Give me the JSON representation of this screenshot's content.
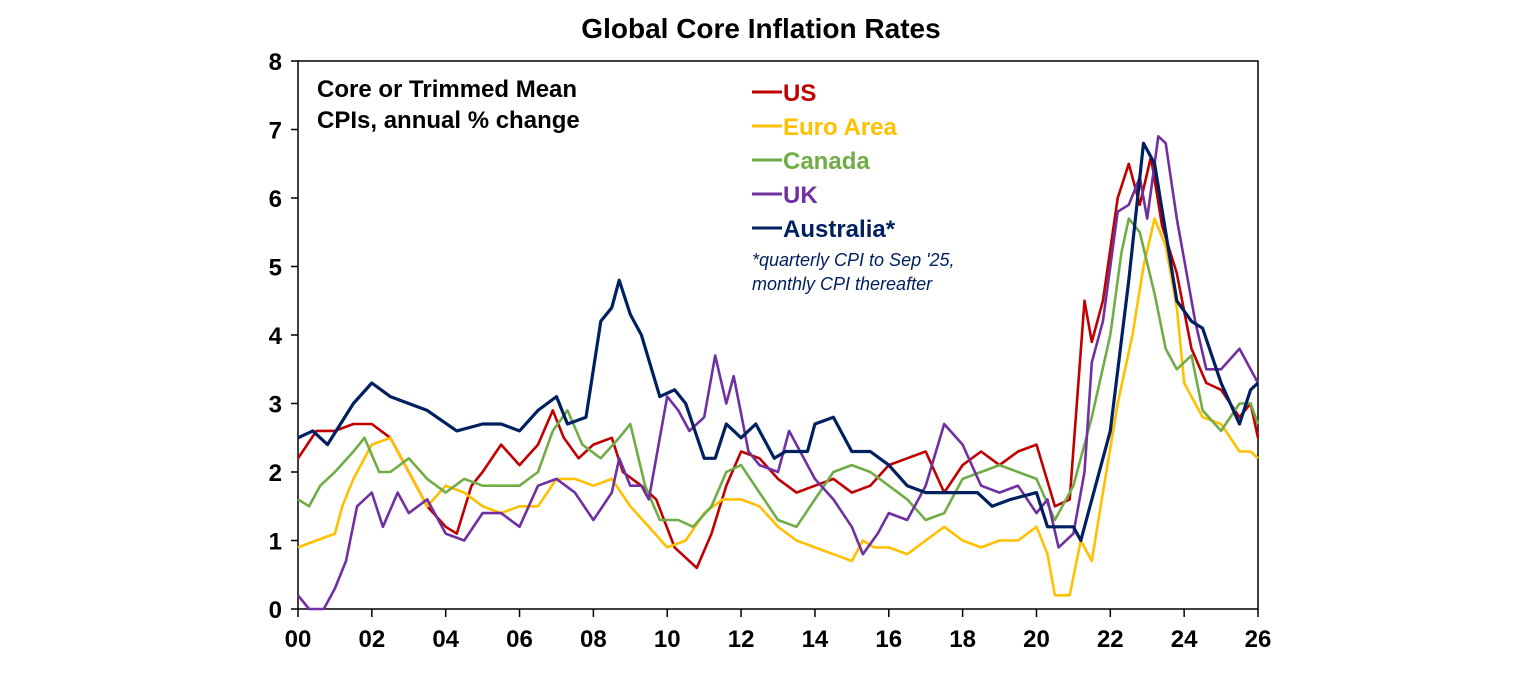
{
  "chart_data": {
    "type": "line",
    "title": "Global Core Inflation Rates",
    "annotation": [
      "Core or Trimmed Mean",
      "CPIs, annual % change"
    ],
    "footnote": [
      "*quarterly CPI to Sep '25,",
      "monthly CPI thereafter"
    ],
    "xlabel": "",
    "ylabel": "",
    "xlim": [
      2000,
      2026
    ],
    "ylim": [
      0,
      8
    ],
    "x_ticks": [
      0,
      2,
      4,
      6,
      8,
      10,
      12,
      14,
      16,
      18,
      20,
      22,
      24,
      26
    ],
    "x_tick_labels": [
      "00",
      "02",
      "04",
      "06",
      "08",
      "10",
      "12",
      "14",
      "16",
      "18",
      "20",
      "22",
      "24",
      "26"
    ],
    "y_ticks": [
      0,
      1,
      2,
      3,
      4,
      5,
      6,
      7,
      8
    ],
    "y_tick_labels": [
      "0",
      "1",
      "2",
      "3",
      "4",
      "5",
      "6",
      "7",
      "8"
    ],
    "grid": false,
    "legend_placement": "top-center",
    "series": [
      {
        "name": "US",
        "color": "#C00000",
        "points": [
          [
            0,
            2.2
          ],
          [
            0.5,
            2.6
          ],
          [
            1,
            2.6
          ],
          [
            1.5,
            2.7
          ],
          [
            2,
            2.7
          ],
          [
            2.5,
            2.5
          ],
          [
            3,
            2.0
          ],
          [
            3.5,
            1.5
          ],
          [
            4,
            1.2
          ],
          [
            4.3,
            1.1
          ],
          [
            4.7,
            1.8
          ],
          [
            5,
            2.0
          ],
          [
            5.5,
            2.4
          ],
          [
            6,
            2.1
          ],
          [
            6.5,
            2.4
          ],
          [
            6.9,
            2.9
          ],
          [
            7.2,
            2.5
          ],
          [
            7.6,
            2.2
          ],
          [
            8,
            2.4
          ],
          [
            8.5,
            2.5
          ],
          [
            8.8,
            2.0
          ],
          [
            9.3,
            1.8
          ],
          [
            9.7,
            1.6
          ],
          [
            10.2,
            0.9
          ],
          [
            10.8,
            0.6
          ],
          [
            11.2,
            1.1
          ],
          [
            11.6,
            1.8
          ],
          [
            12,
            2.3
          ],
          [
            12.5,
            2.2
          ],
          [
            13,
            1.9
          ],
          [
            13.5,
            1.7
          ],
          [
            14,
            1.8
          ],
          [
            14.5,
            1.9
          ],
          [
            15,
            1.7
          ],
          [
            15.5,
            1.8
          ],
          [
            16,
            2.1
          ],
          [
            16.5,
            2.2
          ],
          [
            17,
            2.3
          ],
          [
            17.5,
            1.7
          ],
          [
            18,
            2.1
          ],
          [
            18.5,
            2.3
          ],
          [
            19,
            2.1
          ],
          [
            19.5,
            2.3
          ],
          [
            20,
            2.4
          ],
          [
            20.5,
            1.5
          ],
          [
            20.9,
            1.6
          ],
          [
            21.3,
            4.5
          ],
          [
            21.5,
            3.9
          ],
          [
            21.8,
            4.5
          ],
          [
            22.2,
            6.0
          ],
          [
            22.5,
            6.5
          ],
          [
            22.8,
            5.9
          ],
          [
            23.1,
            6.6
          ],
          [
            23.4,
            5.6
          ],
          [
            23.8,
            4.9
          ],
          [
            24.2,
            3.8
          ],
          [
            24.6,
            3.3
          ],
          [
            25,
            3.2
          ],
          [
            25.5,
            2.8
          ],
          [
            25.8,
            3.0
          ],
          [
            26,
            2.5
          ]
        ]
      },
      {
        "name": "Euro Area",
        "color": "#FFC000",
        "points": [
          [
            0,
            0.9
          ],
          [
            0.5,
            1.0
          ],
          [
            1,
            1.1
          ],
          [
            1.2,
            1.5
          ],
          [
            1.5,
            1.9
          ],
          [
            2,
            2.4
          ],
          [
            2.5,
            2.5
          ],
          [
            3,
            2.0
          ],
          [
            3.5,
            1.5
          ],
          [
            4,
            1.8
          ],
          [
            4.5,
            1.7
          ],
          [
            5,
            1.5
          ],
          [
            5.5,
            1.4
          ],
          [
            6,
            1.5
          ],
          [
            6.5,
            1.5
          ],
          [
            7,
            1.9
          ],
          [
            7.5,
            1.9
          ],
          [
            8,
            1.8
          ],
          [
            8.5,
            1.9
          ],
          [
            9,
            1.5
          ],
          [
            9.5,
            1.2
          ],
          [
            10,
            0.9
          ],
          [
            10.5,
            1.0
          ],
          [
            11,
            1.4
          ],
          [
            11.5,
            1.6
          ],
          [
            12,
            1.6
          ],
          [
            12.5,
            1.5
          ],
          [
            13,
            1.2
          ],
          [
            13.5,
            1.0
          ],
          [
            14,
            0.9
          ],
          [
            14.5,
            0.8
          ],
          [
            15,
            0.7
          ],
          [
            15.3,
            1.0
          ],
          [
            15.6,
            0.9
          ],
          [
            16,
            0.9
          ],
          [
            16.5,
            0.8
          ],
          [
            17,
            1.0
          ],
          [
            17.5,
            1.2
          ],
          [
            18,
            1.0
          ],
          [
            18.5,
            0.9
          ],
          [
            19,
            1.0
          ],
          [
            19.5,
            1.0
          ],
          [
            20,
            1.2
          ],
          [
            20.3,
            0.8
          ],
          [
            20.5,
            0.2
          ],
          [
            20.9,
            0.2
          ],
          [
            21.2,
            1.0
          ],
          [
            21.5,
            0.7
          ],
          [
            21.8,
            1.7
          ],
          [
            22.2,
            3.0
          ],
          [
            22.6,
            4.0
          ],
          [
            22.9,
            5.0
          ],
          [
            23.2,
            5.7
          ],
          [
            23.5,
            5.3
          ],
          [
            23.8,
            4.4
          ],
          [
            24,
            3.3
          ],
          [
            24.5,
            2.8
          ],
          [
            25,
            2.7
          ],
          [
            25.5,
            2.3
          ],
          [
            25.8,
            2.3
          ],
          [
            26,
            2.2
          ]
        ]
      },
      {
        "name": "Canada",
        "color": "#70AD47",
        "points": [
          [
            0,
            1.6
          ],
          [
            0.3,
            1.5
          ],
          [
            0.6,
            1.8
          ],
          [
            1,
            2.0
          ],
          [
            1.5,
            2.3
          ],
          [
            1.8,
            2.5
          ],
          [
            2.2,
            2.0
          ],
          [
            2.5,
            2.0
          ],
          [
            3,
            2.2
          ],
          [
            3.5,
            1.9
          ],
          [
            4,
            1.7
          ],
          [
            4.5,
            1.9
          ],
          [
            5,
            1.8
          ],
          [
            5.5,
            1.8
          ],
          [
            6,
            1.8
          ],
          [
            6.5,
            2.0
          ],
          [
            6.9,
            2.6
          ],
          [
            7.3,
            2.9
          ],
          [
            7.7,
            2.4
          ],
          [
            8.2,
            2.2
          ],
          [
            8.7,
            2.5
          ],
          [
            9,
            2.7
          ],
          [
            9.4,
            1.8
          ],
          [
            9.8,
            1.3
          ],
          [
            10.3,
            1.3
          ],
          [
            10.7,
            1.2
          ],
          [
            11.2,
            1.5
          ],
          [
            11.6,
            2.0
          ],
          [
            12,
            2.1
          ],
          [
            12.5,
            1.7
          ],
          [
            13,
            1.3
          ],
          [
            13.5,
            1.2
          ],
          [
            14,
            1.6
          ],
          [
            14.5,
            2.0
          ],
          [
            15,
            2.1
          ],
          [
            15.5,
            2.0
          ],
          [
            16,
            1.8
          ],
          [
            16.5,
            1.6
          ],
          [
            17,
            1.3
          ],
          [
            17.5,
            1.4
          ],
          [
            18,
            1.9
          ],
          [
            18.5,
            2.0
          ],
          [
            19,
            2.1
          ],
          [
            19.5,
            2.0
          ],
          [
            20,
            1.9
          ],
          [
            20.5,
            1.3
          ],
          [
            21,
            1.8
          ],
          [
            21.5,
            2.8
          ],
          [
            22,
            4.0
          ],
          [
            22.3,
            5.2
          ],
          [
            22.5,
            5.7
          ],
          [
            22.8,
            5.5
          ],
          [
            23.2,
            4.6
          ],
          [
            23.5,
            3.8
          ],
          [
            23.8,
            3.5
          ],
          [
            24.2,
            3.7
          ],
          [
            24.5,
            2.9
          ],
          [
            25,
            2.6
          ],
          [
            25.5,
            3.0
          ],
          [
            25.8,
            3.0
          ],
          [
            26,
            2.7
          ]
        ]
      },
      {
        "name": "UK",
        "color": "#7030A0",
        "points": [
          [
            0,
            0.2
          ],
          [
            0.3,
            0.0
          ],
          [
            0.7,
            0.0
          ],
          [
            1,
            0.3
          ],
          [
            1.3,
            0.7
          ],
          [
            1.6,
            1.5
          ],
          [
            2,
            1.7
          ],
          [
            2.3,
            1.2
          ],
          [
            2.7,
            1.7
          ],
          [
            3,
            1.4
          ],
          [
            3.5,
            1.6
          ],
          [
            4,
            1.1
          ],
          [
            4.5,
            1.0
          ],
          [
            5,
            1.4
          ],
          [
            5.5,
            1.4
          ],
          [
            6,
            1.2
          ],
          [
            6.5,
            1.8
          ],
          [
            7,
            1.9
          ],
          [
            7.5,
            1.7
          ],
          [
            8,
            1.3
          ],
          [
            8.5,
            1.7
          ],
          [
            8.7,
            2.2
          ],
          [
            9,
            1.8
          ],
          [
            9.3,
            1.8
          ],
          [
            9.5,
            1.6
          ],
          [
            10,
            3.1
          ],
          [
            10.3,
            2.9
          ],
          [
            10.6,
            2.6
          ],
          [
            11,
            2.8
          ],
          [
            11.3,
            3.7
          ],
          [
            11.6,
            3.0
          ],
          [
            11.8,
            3.4
          ],
          [
            12.2,
            2.3
          ],
          [
            12.5,
            2.1
          ],
          [
            13,
            2.0
          ],
          [
            13.3,
            2.6
          ],
          [
            13.7,
            2.2
          ],
          [
            14,
            1.9
          ],
          [
            14.5,
            1.6
          ],
          [
            15,
            1.2
          ],
          [
            15.3,
            0.8
          ],
          [
            15.7,
            1.1
          ],
          [
            16,
            1.4
          ],
          [
            16.5,
            1.3
          ],
          [
            17,
            1.8
          ],
          [
            17.5,
            2.7
          ],
          [
            18,
            2.4
          ],
          [
            18.5,
            1.8
          ],
          [
            19,
            1.7
          ],
          [
            19.5,
            1.8
          ],
          [
            20,
            1.4
          ],
          [
            20.3,
            1.6
          ],
          [
            20.6,
            0.9
          ],
          [
            21,
            1.1
          ],
          [
            21.3,
            2.0
          ],
          [
            21.5,
            3.6
          ],
          [
            21.8,
            4.2
          ],
          [
            22.2,
            5.8
          ],
          [
            22.5,
            5.9
          ],
          [
            22.8,
            6.3
          ],
          [
            23,
            5.7
          ],
          [
            23.3,
            6.9
          ],
          [
            23.5,
            6.8
          ],
          [
            23.8,
            5.7
          ],
          [
            24,
            5.1
          ],
          [
            24.3,
            4.2
          ],
          [
            24.6,
            3.5
          ],
          [
            25,
            3.5
          ],
          [
            25.5,
            3.8
          ],
          [
            25.8,
            3.5
          ],
          [
            26,
            3.3
          ]
        ]
      },
      {
        "name": "Australia*",
        "color": "#002060",
        "points": [
          [
            0,
            2.5
          ],
          [
            0.4,
            2.6
          ],
          [
            0.8,
            2.4
          ],
          [
            1.5,
            3.0
          ],
          [
            2,
            3.3
          ],
          [
            2.5,
            3.1
          ],
          [
            3.5,
            2.9
          ],
          [
            4.3,
            2.6
          ],
          [
            5,
            2.7
          ],
          [
            5.5,
            2.7
          ],
          [
            6,
            2.6
          ],
          [
            6.5,
            2.9
          ],
          [
            7,
            3.1
          ],
          [
            7.3,
            2.7
          ],
          [
            7.8,
            2.8
          ],
          [
            8.2,
            4.2
          ],
          [
            8.5,
            4.4
          ],
          [
            8.7,
            4.8
          ],
          [
            9,
            4.3
          ],
          [
            9.3,
            4.0
          ],
          [
            9.8,
            3.1
          ],
          [
            10.2,
            3.2
          ],
          [
            10.5,
            3.0
          ],
          [
            11,
            2.2
          ],
          [
            11.3,
            2.2
          ],
          [
            11.6,
            2.7
          ],
          [
            12,
            2.5
          ],
          [
            12.4,
            2.7
          ],
          [
            12.9,
            2.2
          ],
          [
            13.2,
            2.3
          ],
          [
            13.8,
            2.3
          ],
          [
            14,
            2.7
          ],
          [
            14.5,
            2.8
          ],
          [
            15,
            2.3
          ],
          [
            15.5,
            2.3
          ],
          [
            16,
            2.1
          ],
          [
            16.5,
            1.8
          ],
          [
            17,
            1.7
          ],
          [
            18,
            1.7
          ],
          [
            18.4,
            1.7
          ],
          [
            18.8,
            1.5
          ],
          [
            19.3,
            1.6
          ],
          [
            20,
            1.7
          ],
          [
            20.3,
            1.2
          ],
          [
            21,
            1.2
          ],
          [
            21.2,
            1.0
          ],
          [
            22,
            2.6
          ],
          [
            22.5,
            4.8
          ],
          [
            22.9,
            6.8
          ],
          [
            23.2,
            6.5
          ],
          [
            23.8,
            4.5
          ],
          [
            24.2,
            4.2
          ],
          [
            24.5,
            4.1
          ],
          [
            25,
            3.3
          ],
          [
            25.5,
            2.7
          ],
          [
            25.8,
            3.2
          ],
          [
            26,
            3.3
          ]
        ]
      }
    ]
  }
}
